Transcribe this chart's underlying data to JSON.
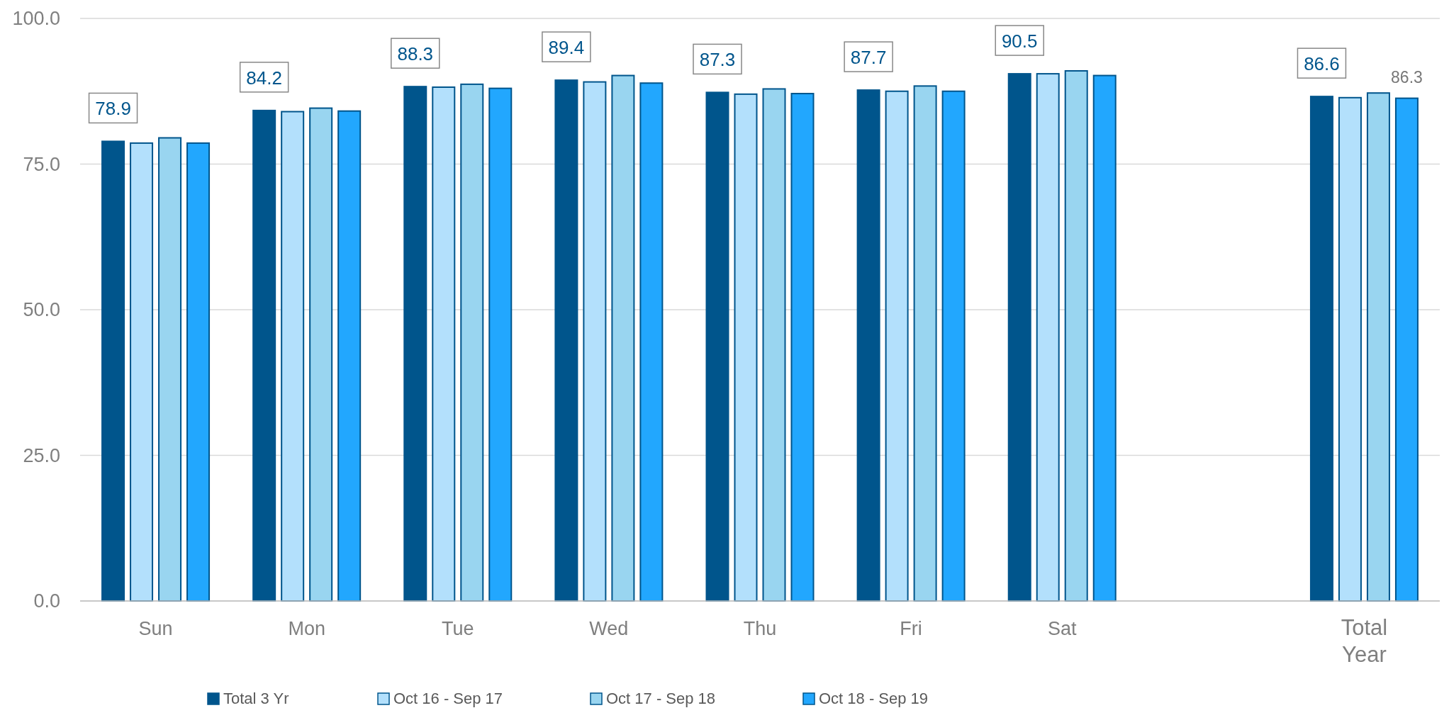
{
  "chart_data": {
    "type": "bar",
    "categories": [
      "Sun",
      "Mon",
      "Tue",
      "Wed",
      "Thu",
      "Fri",
      "Sat",
      null,
      "Total Year"
    ],
    "series": [
      {
        "name": "Total 3 Yr",
        "color": "#00558c",
        "values": [
          78.9,
          84.2,
          88.3,
          89.4,
          87.3,
          87.7,
          90.5,
          null,
          86.6
        ],
        "value_labels": [
          "78.9",
          "84.2",
          "88.3",
          "89.4",
          "87.3",
          "87.7",
          "90.5",
          null,
          "86.6"
        ]
      },
      {
        "name": "Oct 16 - Sep 17",
        "color": "#b3e0fc",
        "values": [
          78.6,
          84.0,
          88.2,
          89.1,
          87.0,
          87.5,
          90.5,
          null,
          86.4
        ]
      },
      {
        "name": "Oct 17 - Sep 18",
        "color": "#99d5f0",
        "values": [
          79.5,
          84.6,
          88.7,
          90.2,
          87.9,
          88.4,
          91.0,
          null,
          87.2
        ]
      },
      {
        "name": "Oct 18 - Sep 19",
        "color": "#22a7fe",
        "values": [
          78.6,
          84.1,
          88.0,
          88.9,
          87.1,
          87.5,
          90.2,
          null,
          86.3
        ],
        "value_labels": [
          null,
          null,
          null,
          null,
          null,
          null,
          null,
          null,
          "86.3"
        ]
      }
    ],
    "ylim": [
      0,
      100
    ],
    "yticks": [
      {
        "value": 0,
        "label": "0.0"
      },
      {
        "value": 25,
        "label": "25.0"
      },
      {
        "value": 50,
        "label": "50.0"
      },
      {
        "value": 75,
        "label": "75.0"
      },
      {
        "value": 100,
        "label": "100.0"
      }
    ],
    "grid": "y",
    "legend": "bottom"
  }
}
